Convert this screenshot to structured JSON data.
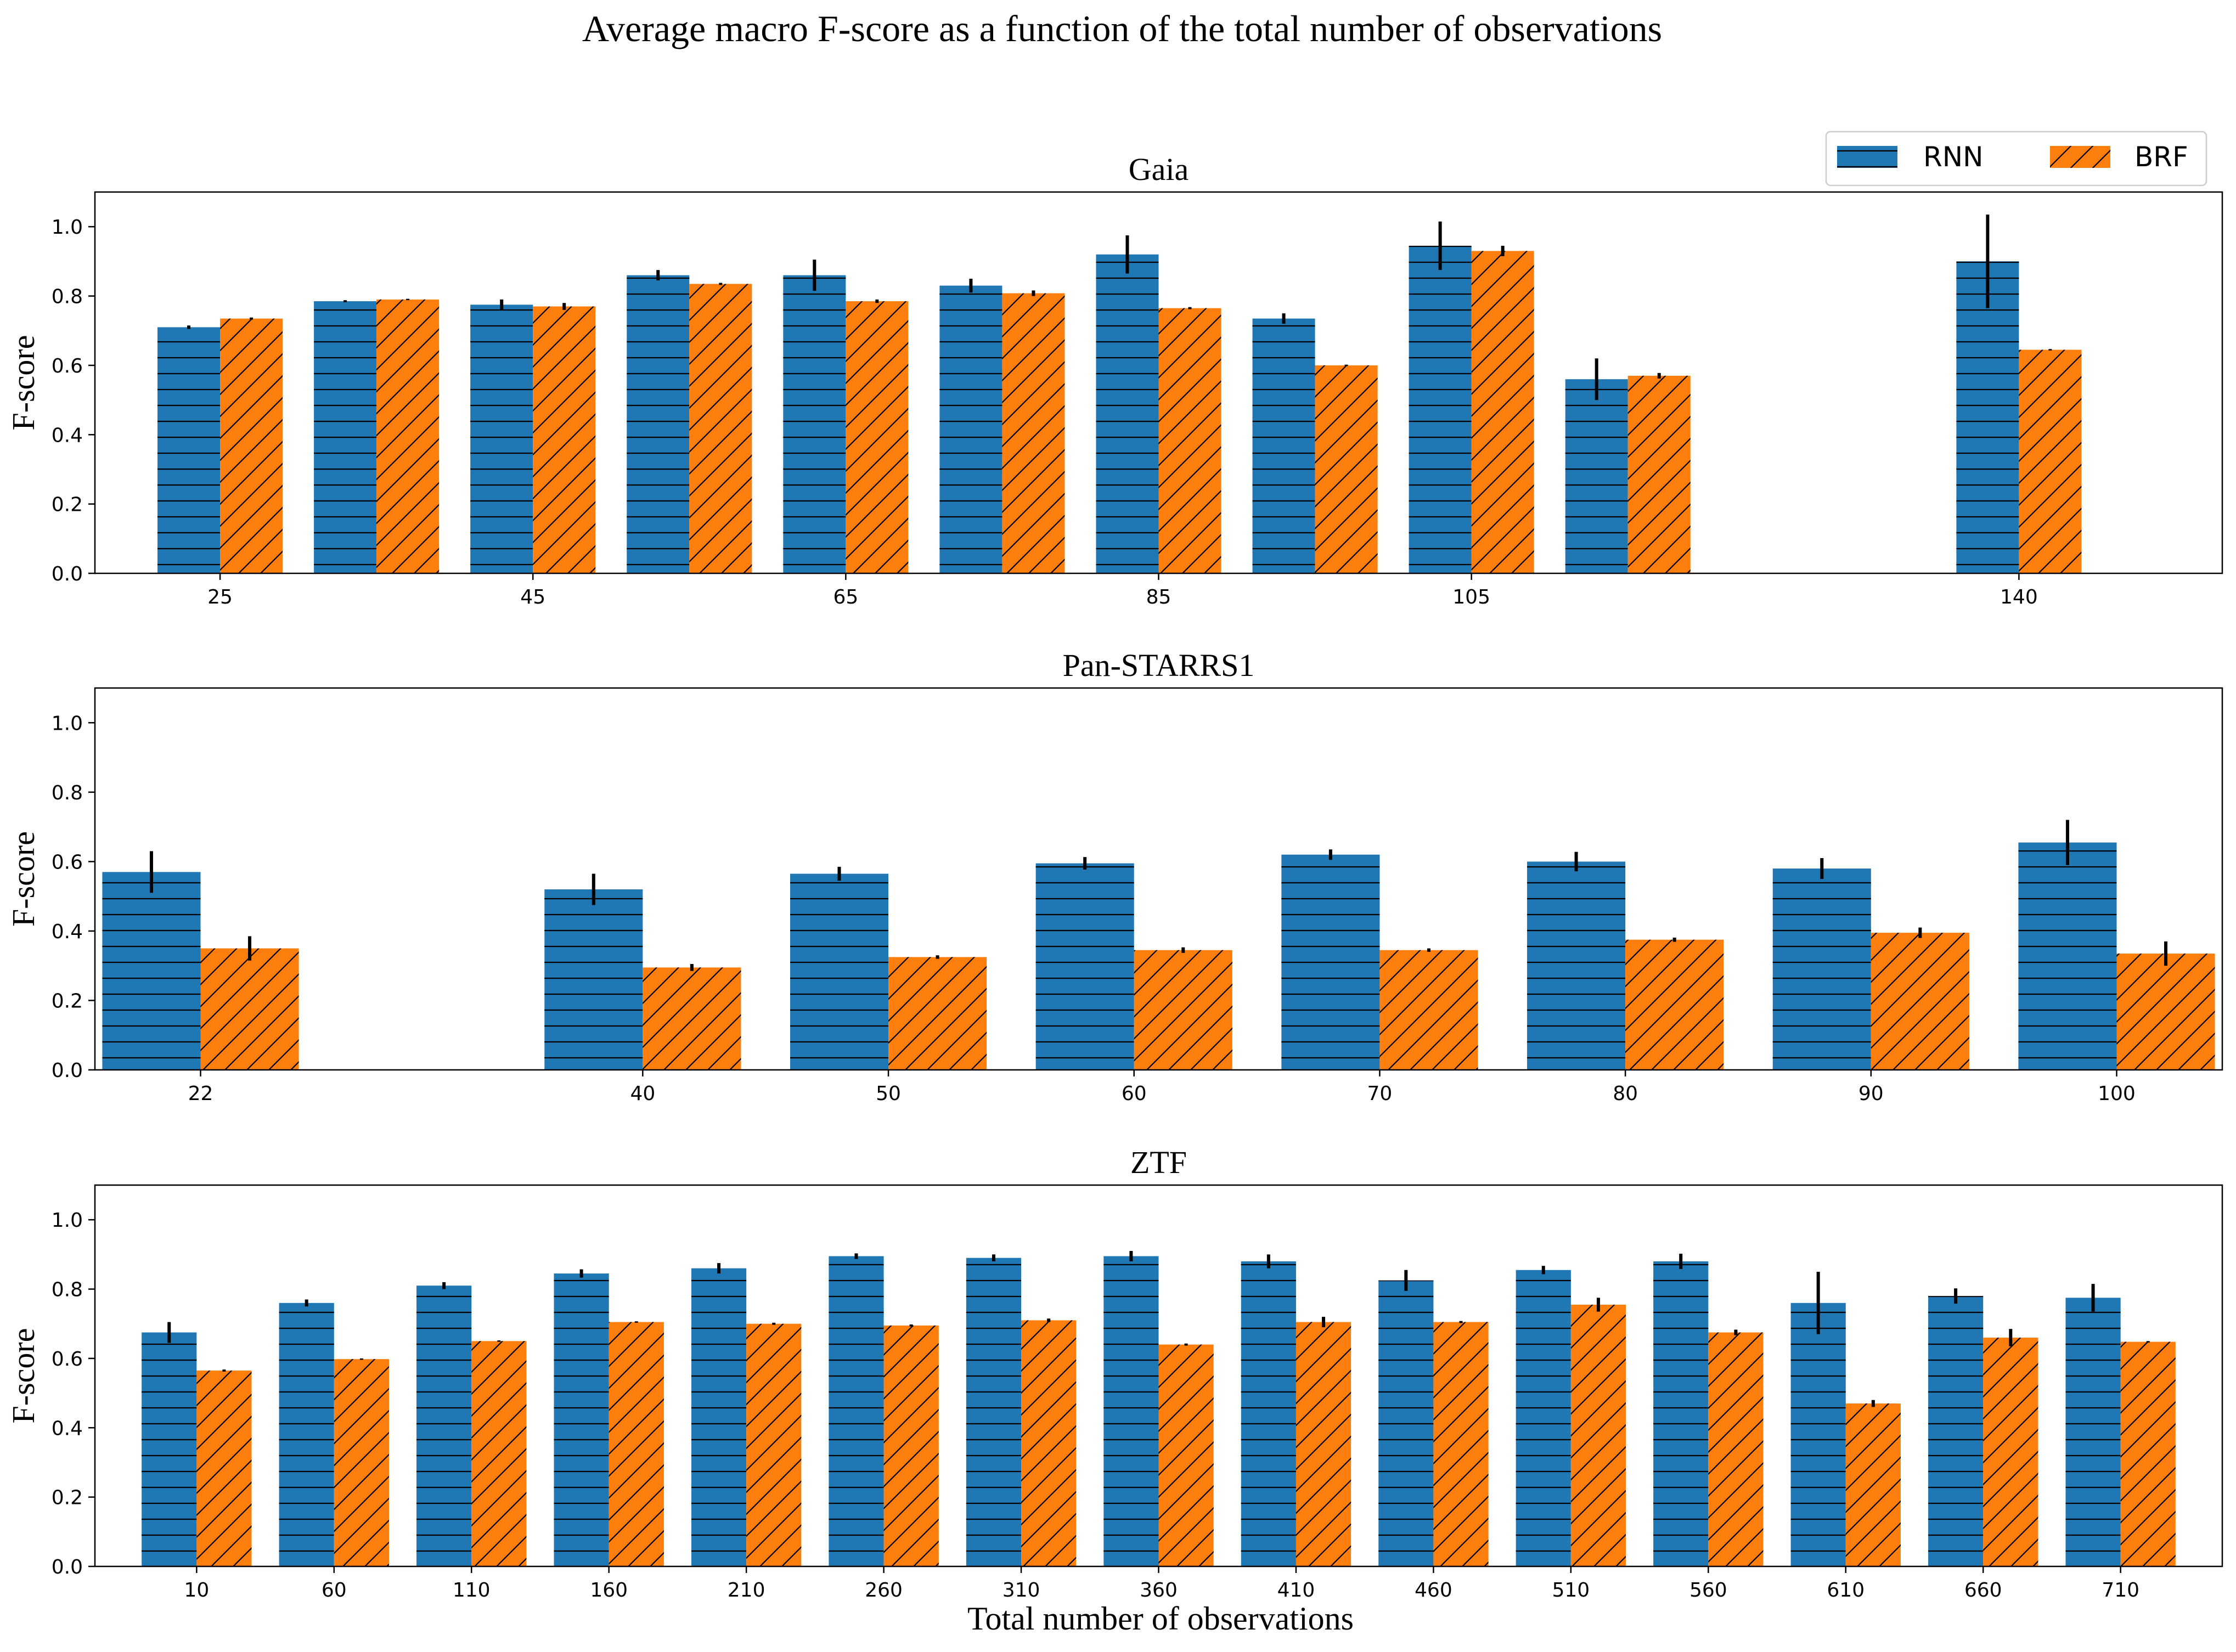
{
  "figure": {
    "title": "Average macro F-score as a function of the total number of observations",
    "xlabel": "Total number of observations"
  },
  "legend": {
    "entries": [
      {
        "label": "RNN",
        "color": "#1f77b4",
        "hatch": "horizontal"
      },
      {
        "label": "BRF",
        "color": "#ff7f0e",
        "hatch": "diagonal"
      }
    ],
    "placement": "top-right"
  },
  "chart_data": [
    {
      "type": "bar",
      "title": "Gaia",
      "ylabel": "F-score",
      "ylim": [
        0,
        1.1
      ],
      "yticks": [
        "0.0",
        "0.2",
        "0.4",
        "0.6",
        "0.8",
        "1.0"
      ],
      "x": [
        25,
        35,
        45,
        55,
        65,
        75,
        85,
        95,
        105,
        115,
        140
      ],
      "xticks": [
        25,
        45,
        65,
        85,
        105,
        140
      ],
      "xlim": [
        17,
        153
      ],
      "series": [
        {
          "name": "RNN",
          "values": [
            0.71,
            0.785,
            0.775,
            0.86,
            0.86,
            0.83,
            0.92,
            0.735,
            0.945,
            0.56,
            0.9
          ],
          "errors": [
            0.005,
            0.003,
            0.015,
            0.015,
            0.045,
            0.02,
            0.055,
            0.015,
            0.07,
            0.06,
            0.135
          ]
        },
        {
          "name": "BRF",
          "values": [
            0.735,
            0.79,
            0.77,
            0.835,
            0.785,
            0.808,
            0.765,
            0.6,
            0.93,
            0.57,
            0.645
          ],
          "errors": [
            0.003,
            0.002,
            0.01,
            0.003,
            0.005,
            0.008,
            0.003,
            0.002,
            0.015,
            0.008,
            0.002
          ]
        }
      ],
      "grid": false
    },
    {
      "type": "bar",
      "title": "Pan-STARRS1",
      "ylabel": "F-score",
      "ylim": [
        0,
        1.1
      ],
      "yticks": [
        "0.0",
        "0.2",
        "0.4",
        "0.6",
        "0.8",
        "1.0"
      ],
      "x": [
        22,
        40,
        50,
        60,
        70,
        80,
        90,
        100
      ],
      "xticks": [
        22,
        40,
        50,
        60,
        70,
        80,
        90,
        100
      ],
      "xlim": [
        17.7,
        104.3
      ],
      "series": [
        {
          "name": "RNN",
          "values": [
            0.57,
            0.52,
            0.565,
            0.595,
            0.62,
            0.6,
            0.58,
            0.655
          ],
          "errors": [
            0.06,
            0.045,
            0.02,
            0.018,
            0.015,
            0.028,
            0.03,
            0.065
          ]
        },
        {
          "name": "BRF",
          "values": [
            0.35,
            0.295,
            0.325,
            0.345,
            0.345,
            0.375,
            0.395,
            0.335
          ],
          "errors": [
            0.035,
            0.01,
            0.005,
            0.008,
            0.005,
            0.006,
            0.015,
            0.035
          ]
        }
      ],
      "grid": false
    },
    {
      "type": "bar",
      "title": "ZTF",
      "ylabel": "F-score",
      "ylim": [
        0,
        1.1
      ],
      "yticks": [
        "0.0",
        "0.2",
        "0.4",
        "0.6",
        "0.8",
        "1.0"
      ],
      "x": [
        10,
        60,
        110,
        160,
        210,
        260,
        310,
        360,
        410,
        460,
        510,
        560,
        610,
        660,
        710
      ],
      "xticks": [
        10,
        60,
        110,
        160,
        210,
        260,
        310,
        360,
        410,
        460,
        510,
        560,
        610,
        660,
        710
      ],
      "xlim": [
        -27,
        747
      ],
      "series": [
        {
          "name": "RNN",
          "values": [
            0.675,
            0.76,
            0.81,
            0.845,
            0.86,
            0.895,
            0.89,
            0.895,
            0.88,
            0.825,
            0.855,
            0.88,
            0.76,
            0.78,
            0.775
          ],
          "errors": [
            0.03,
            0.01,
            0.01,
            0.012,
            0.015,
            0.008,
            0.01,
            0.015,
            0.02,
            0.03,
            0.012,
            0.022,
            0.09,
            0.022,
            0.04
          ]
        },
        {
          "name": "BRF",
          "values": [
            0.565,
            0.598,
            0.65,
            0.705,
            0.7,
            0.695,
            0.71,
            0.64,
            0.705,
            0.705,
            0.755,
            0.675,
            0.47,
            0.66,
            0.648
          ],
          "errors": [
            0.003,
            0.002,
            0.002,
            0.002,
            0.003,
            0.003,
            0.005,
            0.003,
            0.015,
            0.003,
            0.02,
            0.008,
            0.01,
            0.025,
            0.002
          ]
        }
      ],
      "grid": false
    }
  ]
}
